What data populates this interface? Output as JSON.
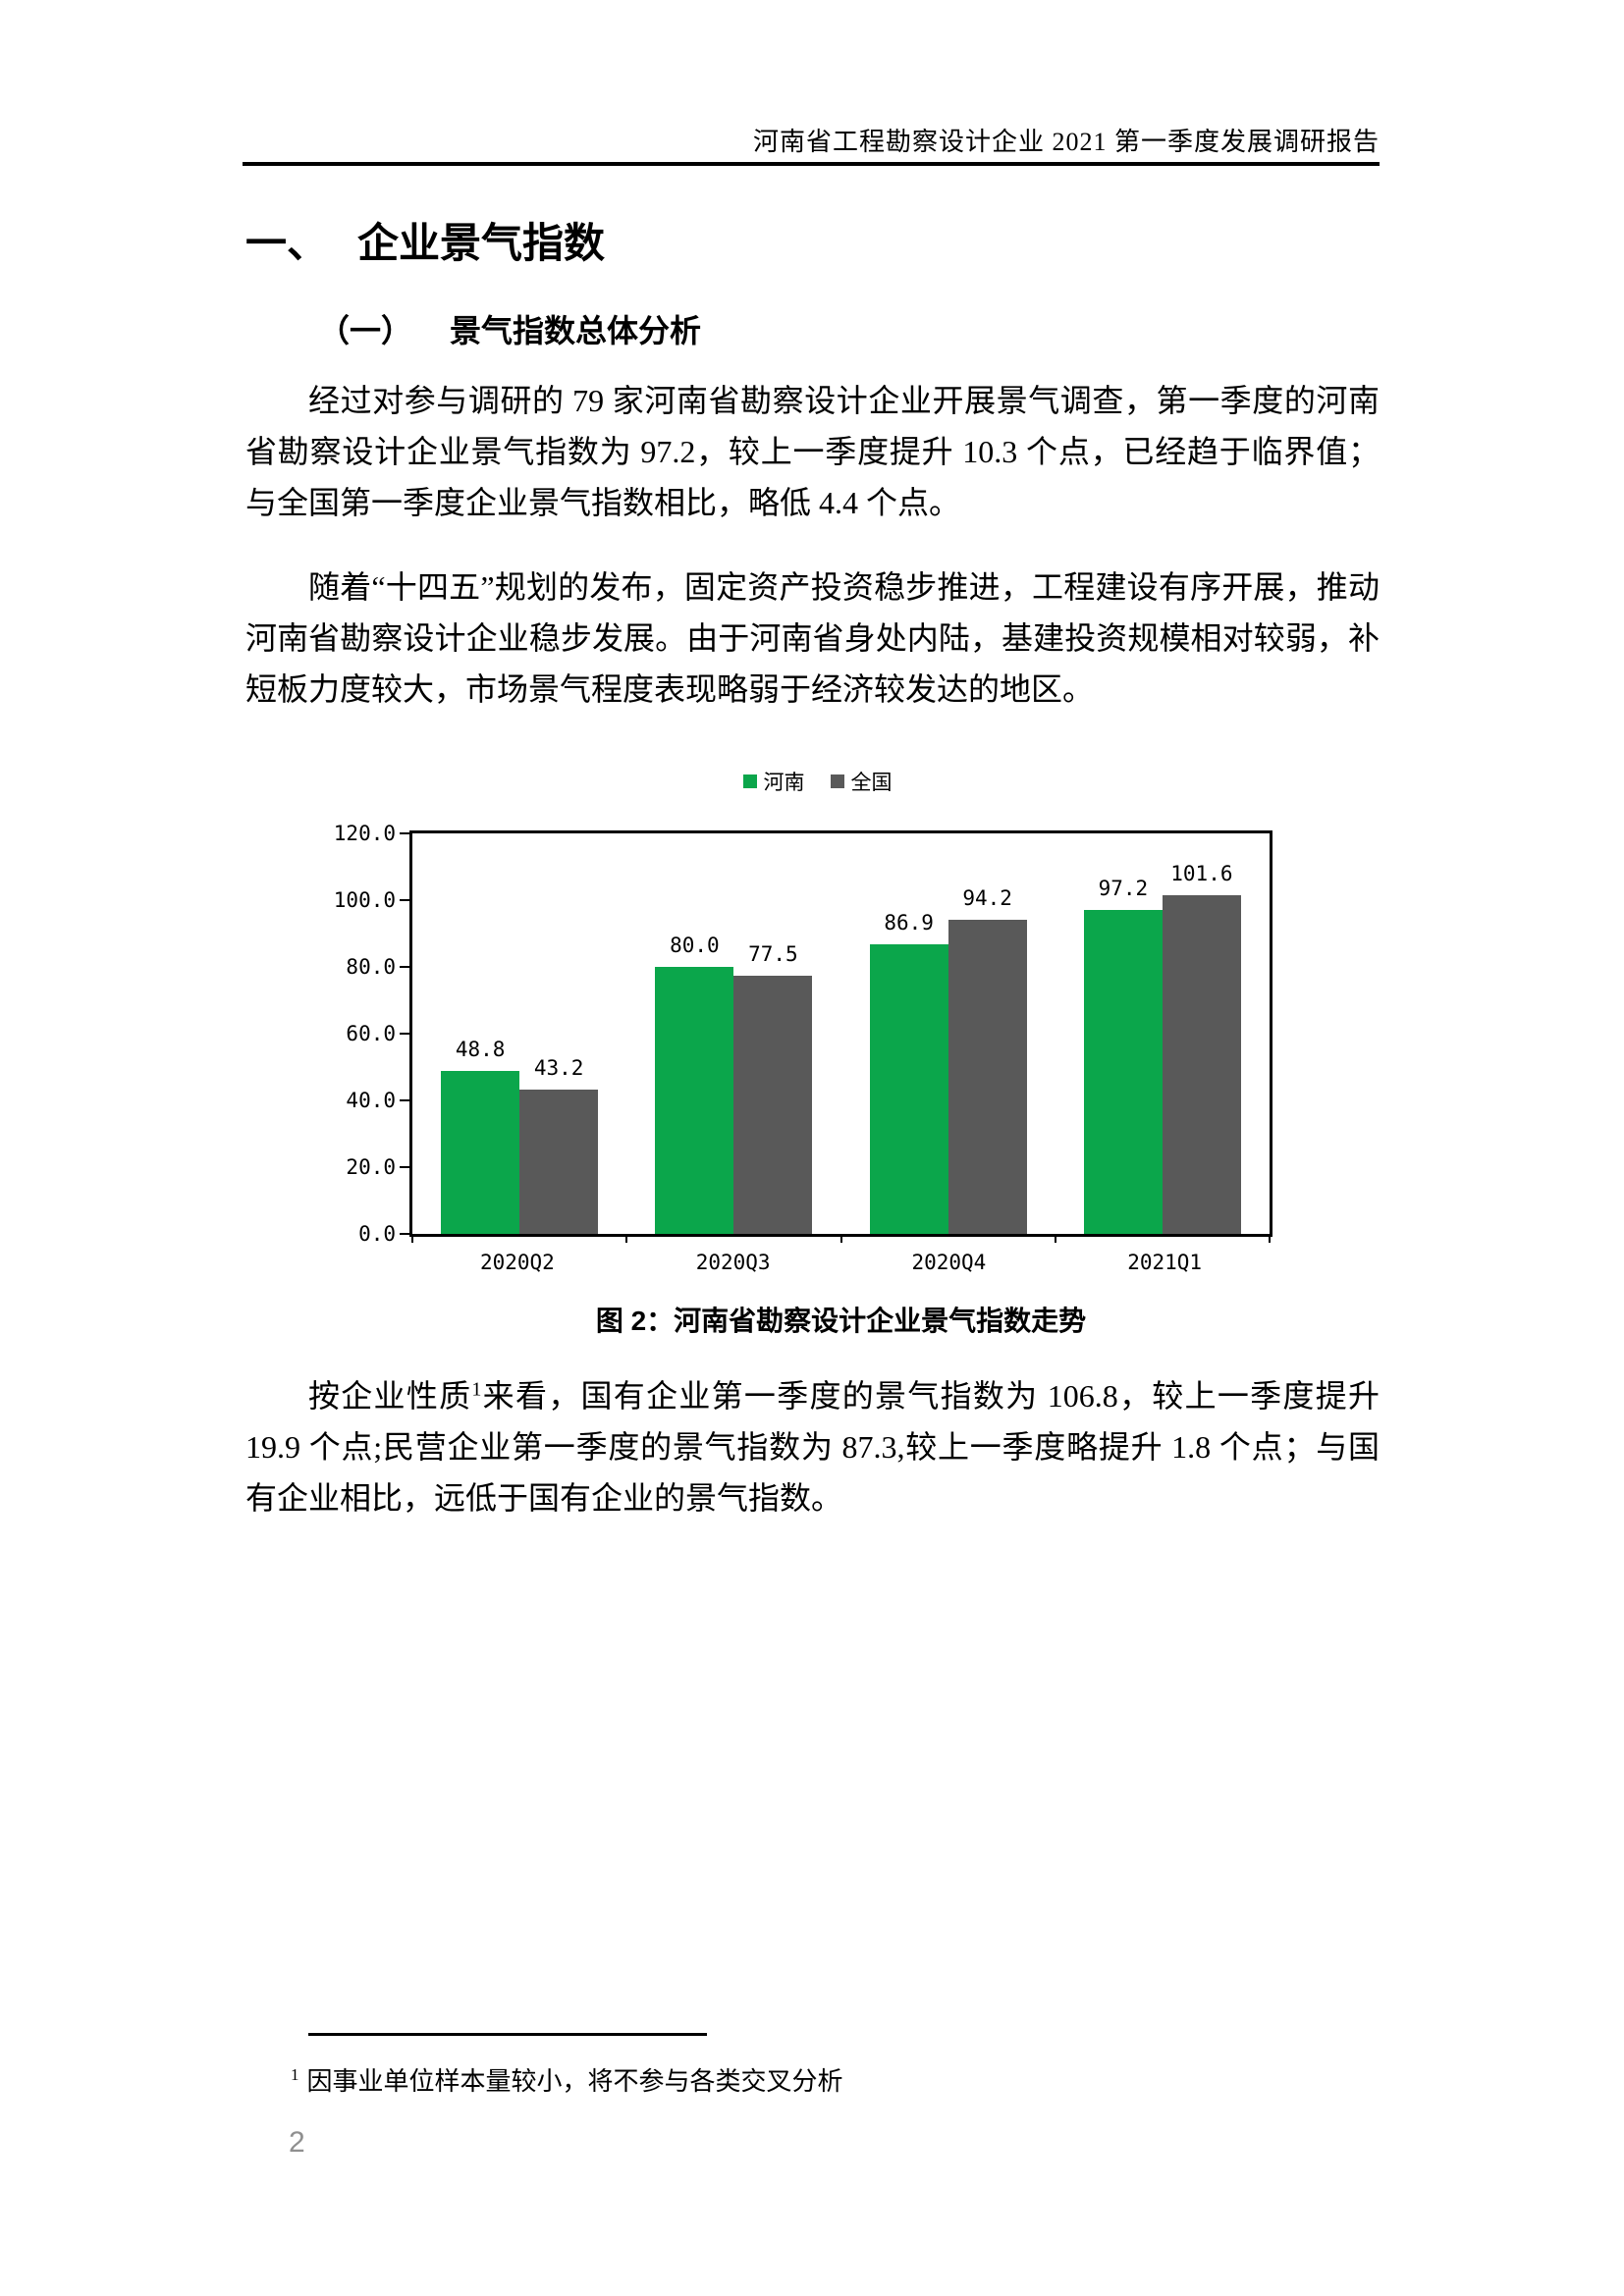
{
  "header": {
    "title": "河南省工程勘察设计企业 2021 第一季度发展调研报告"
  },
  "headings": {
    "h1_num": "一、",
    "h1_text": "企业景气指数",
    "h2_num": "（一）",
    "h2_text": "景气指数总体分析"
  },
  "paragraphs": {
    "p1": "经过对参与调研的 79 家河南省勘察设计企业开展景气调查，第一季度的河南省勘察设计企业景气指数为 97.2，较上一季度提升 10.3 个点，已经趋于临界值；与全国第一季度企业景气指数相比，略低 4.4 个点。",
    "p2": "随着“十四五”规划的发布，固定资产投资稳步推进，工程建设有序开展，推动河南省勘察设计企业稳步发展。由于河南省身处内陆，基建投资规模相对较弱，补短板力度较大，市场景气程度表现略弱于经济较发达的地区。",
    "p3_before_sup": "按企业性质",
    "p3_sup": "1",
    "p3_after_sup": "来看，国有企业第一季度的景气指数为 106.8，较上一季度提升 19.9 个点;民营企业第一季度的景气指数为 87.3,较上一季度略提升 1.8 个点；与国有企业相比，远低于国有企业的景气指数。"
  },
  "chart_caption": "图 2：河南省勘察设计企业景气指数走势",
  "footnote": {
    "marker": "1",
    "text": "因事业单位样本量较小，将不参与各类交叉分析"
  },
  "page_number": "2",
  "chart_data": {
    "type": "bar",
    "title": "",
    "xlabel": "",
    "ylabel": "",
    "categories": [
      "2020Q2",
      "2020Q3",
      "2020Q4",
      "2021Q1"
    ],
    "series": [
      {
        "name": "河南",
        "color": "#0BA64B",
        "values": [
          48.8,
          80.0,
          86.9,
          97.2
        ]
      },
      {
        "name": "全国",
        "color": "#595959",
        "values": [
          43.2,
          77.5,
          94.2,
          101.6
        ]
      }
    ],
    "ylim": [
      0,
      120
    ],
    "ytick_step": 20,
    "ytick_labels": [
      "0.0",
      "20.0",
      "40.0",
      "60.0",
      "80.0",
      "100.0",
      "120.0"
    ],
    "value_label_decimals": 1,
    "legend_position": "top-center",
    "grid": false,
    "plot_border": true
  }
}
